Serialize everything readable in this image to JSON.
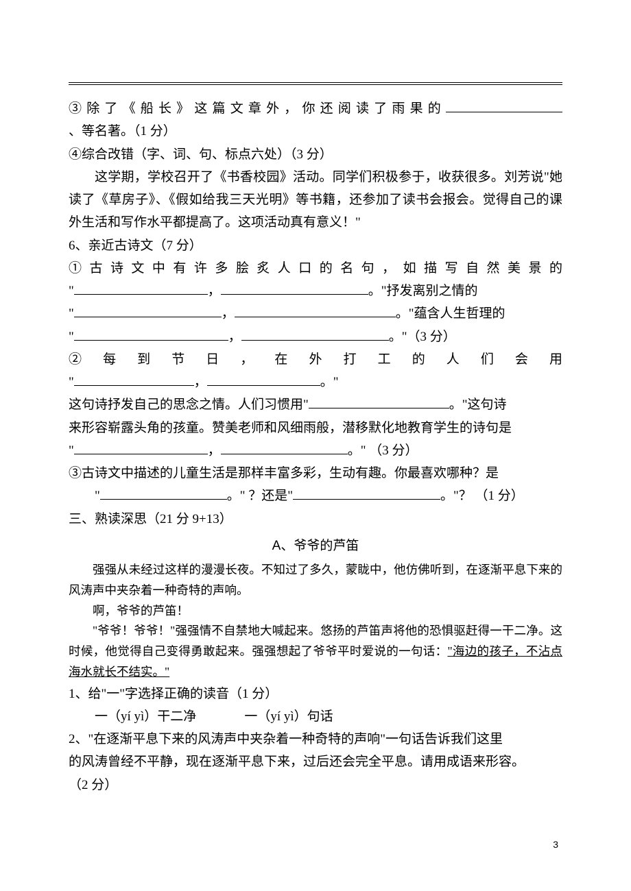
{
  "toprule": {},
  "q3": {
    "text_before": "③除了《船长》这篇文章外，你还阅读了雨果的",
    "blank_width": 170,
    "text_after": "、等名著。（1 分）"
  },
  "q4": {
    "heading": "④综合改错（字、词、句、标点六处）（3 分）",
    "body": "这学期，学校召开了《书香校园》活动。同学们积极参于，收获很多。刘芳说\"她读了《草房子》、《假如给我三天光明》等书籍，还参加了读书会报会。觉得自己的课外生活和写作水平都提高了。这项活动真有意义！\""
  },
  "q6": {
    "heading": "6、亲近古诗文（7 分）",
    "s1_line1": "① 古 诗 文 中 有 许 多 脍 炙 人 口 的 名 句 ， 如 描 写 自 然 美 景 的",
    "s1_line2_a": "\"",
    "s1_line2_blank1": 195,
    "s1_line2_b": "，",
    "s1_line2_blank2": 215,
    "s1_line2_c": "。\"抒发离别之情的",
    "s1_line3_a": "\"",
    "s1_line3_blank1": 215,
    "s1_line3_b": "，",
    "s1_line3_blank2": 235,
    "s1_line3_c": "。\"蕴含人生哲理的",
    "s1_line4_a": "\"",
    "s1_line4_blank1": 225,
    "s1_line4_b": "，",
    "s1_line4_blank2": 215,
    "s1_line4_c": "。\"（3 分）",
    "s2_line1": "② 每 到 节 日 ， 在 外 打 工 的 人 们 会 用",
    "s2_line2_a": "\"",
    "s2_line2_blank1": 175,
    "s2_line2_b": "，",
    "s2_line2_blank2": 165,
    "s2_line2_c": "。\"",
    "s2_line3_a": "这句诗抒发自己的思念之情。人们习惯用\"",
    "s2_line3_blank": 205,
    "s2_line3_b": "。\"这句诗",
    "s2_line4": "来形容崭露头角的孩童。赞美老师和风细雨般，潜移默化地教育学生的诗句是",
    "s2_line5_a": "\"",
    "s2_line5_blank1": 195,
    "s2_line5_b": "，",
    "s2_line5_blank2": 185,
    "s2_line5_c": "。\"  （3 分）",
    "s3_line1": "③古诗文中描述的儿童生活是那样丰富多彩，生动有趣。你最喜欢哪种？是",
    "s3_line2_a": "\"",
    "s3_line2_blank1": 185,
    "s3_line2_b": "。\" ？还是\"",
    "s3_line2_blank2": 215,
    "s3_line2_c": "。\"？ （1 分）"
  },
  "section3_heading": "三、熟读深思（21 分 9+13）",
  "passage_a": {
    "title_prefix": "A",
    "title": "、爷爷的芦笛",
    "p1": "强强从未经过这样的漫漫长夜。不知过了多久，蒙眬中，他仿佛听到，在逐渐平息下来的风涛声中夹杂着一种奇特的声响。",
    "p2": "啊，爷爷的芦笛！",
    "p3_a": "\"爷爷！爷爷！\"强强情不自禁地大喊起来。悠扬的芦笛声将他的恐惧驱赶得一干二净。这时候，他觉得自己变得勇敢起来。强强想起了爷爷平时爱说的一句话：",
    "p3_u": "\"海边的孩子，不沾点海水就长不结实。\""
  },
  "pq1": {
    "heading": "1、给\"一\"字选择正确的读音（1 分）",
    "opt1": "一（yí yì）干二净",
    "opt2": "一（yí yì）句话"
  },
  "pq2": {
    "line1": "2、\"在逐渐平息下来的风涛声中夹杂着一种奇特的声响\"一句话告诉我们这里",
    "line2": "的风涛曾经不平静，现在逐渐平息下来，过后还会完全平息。请用成语来形容。",
    "line3": "（2 分）"
  },
  "page_number": "3"
}
